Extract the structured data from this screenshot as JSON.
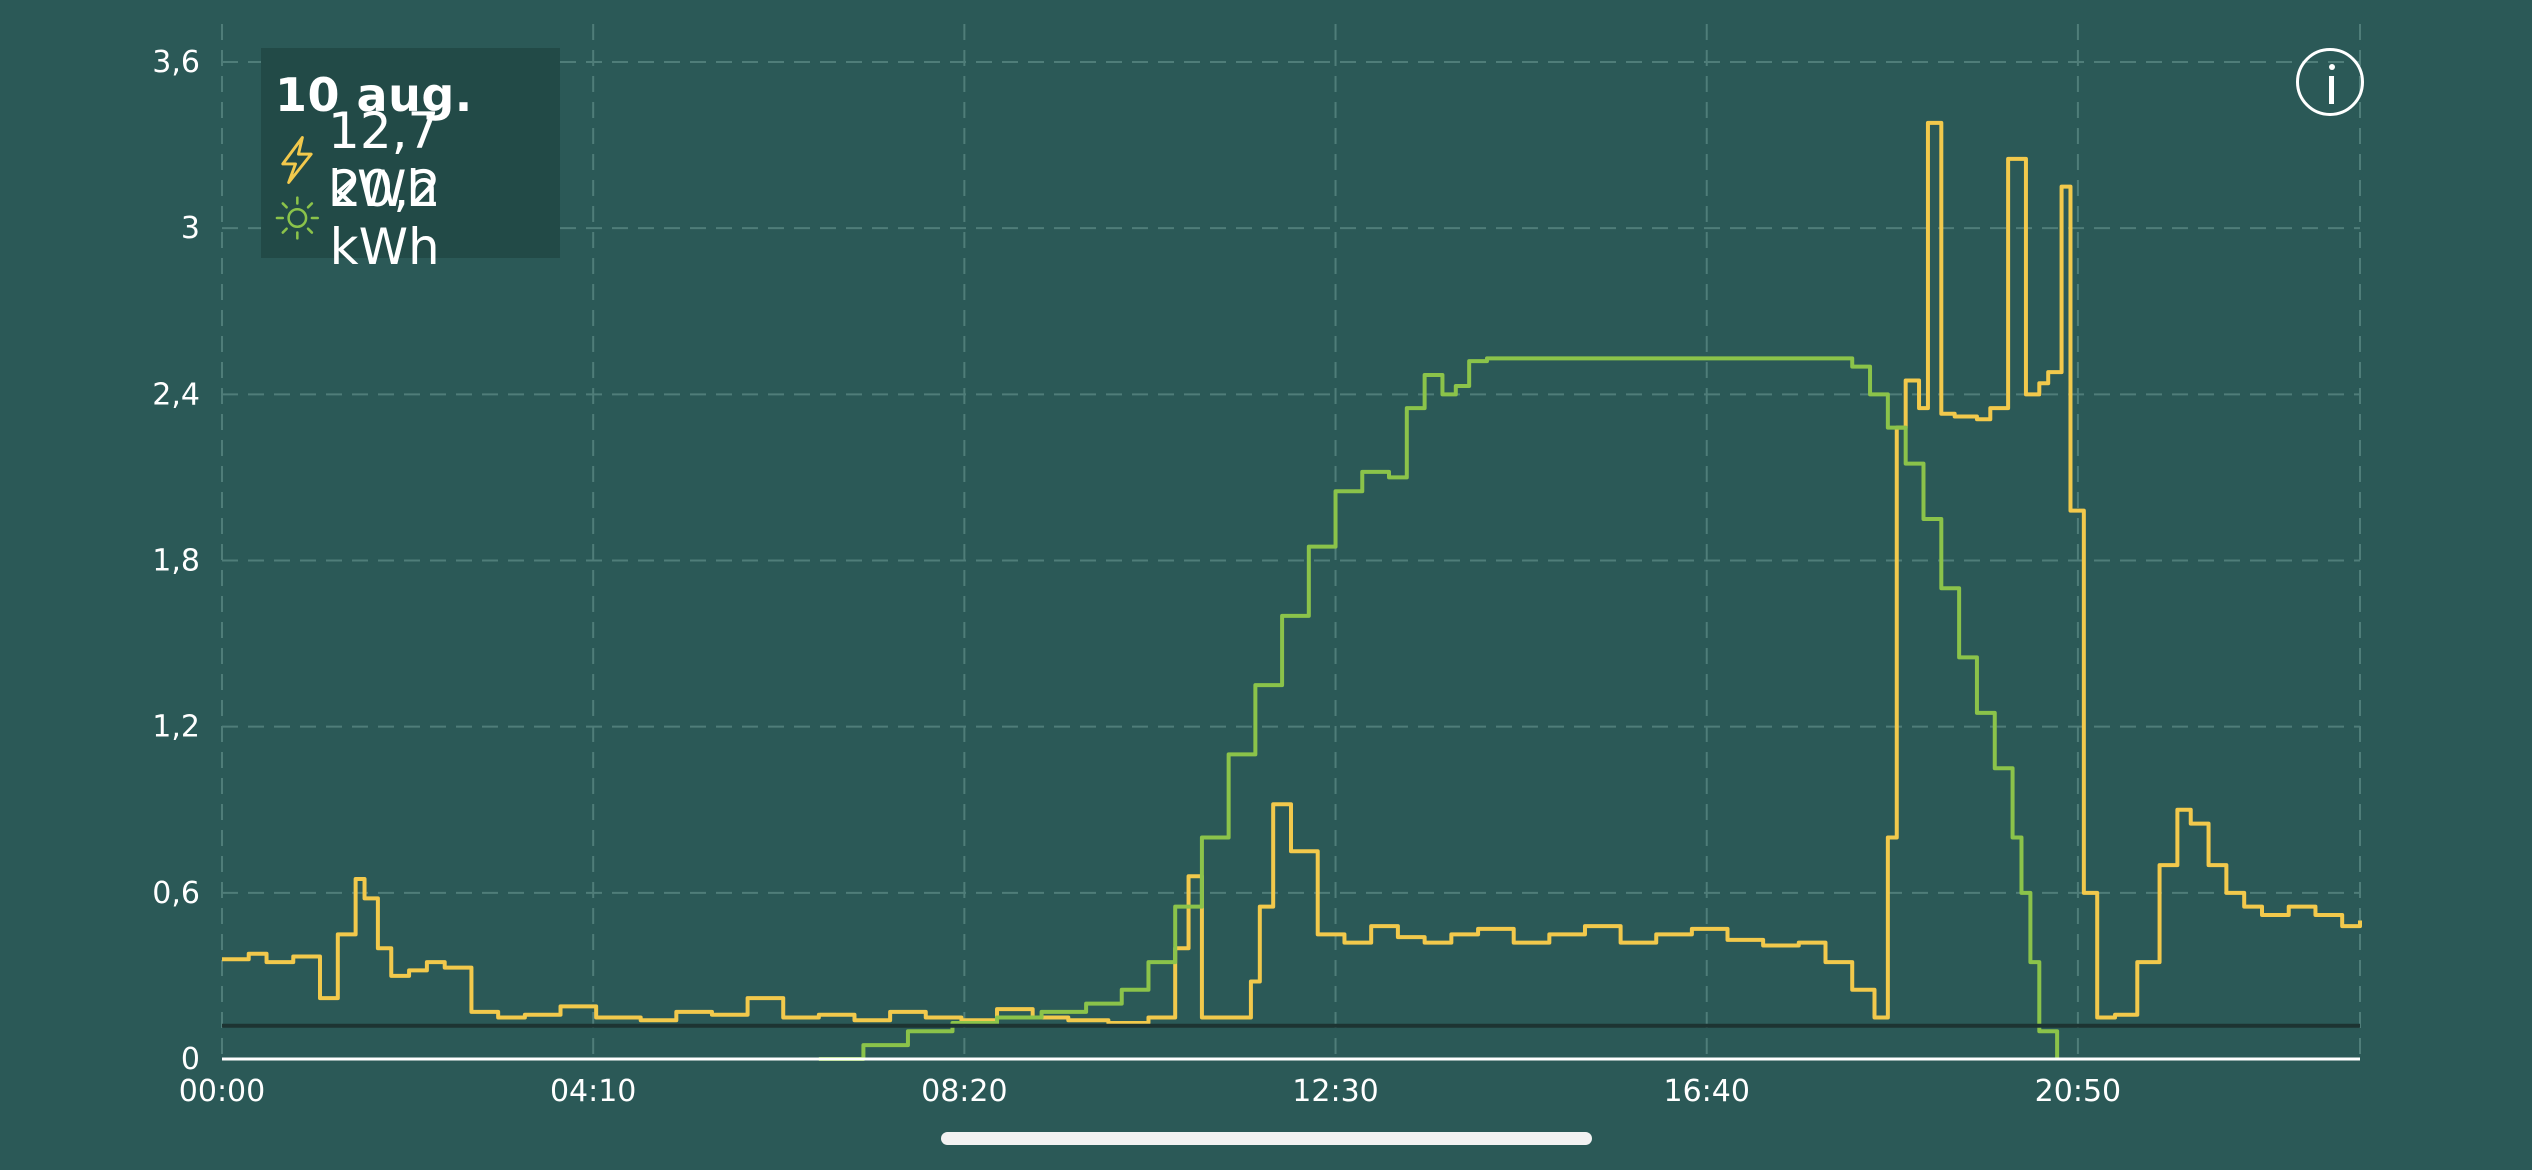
{
  "legend": {
    "date": "10 aug.",
    "consumption": {
      "icon": "lightning-icon",
      "value": "12,7 kWh",
      "color": "#f2c94c"
    },
    "production": {
      "icon": "sun-icon",
      "value": "20,2 kWh",
      "color": "#8bc34a"
    }
  },
  "info_button": {
    "icon": "info-icon"
  },
  "chart_data": {
    "type": "line",
    "x_unit": "hours",
    "xlim": [
      0,
      24
    ],
    "ylim": [
      0,
      3.6
    ],
    "x_ticks": [
      0,
      4.1667,
      8.3333,
      12.5,
      16.6667,
      20.8333
    ],
    "x_tick_labels": [
      "00:00",
      "04:10",
      "08:20",
      "12:30",
      "16:40",
      "20:50"
    ],
    "y_ticks": [
      0,
      0.6,
      1.2,
      1.8,
      2.4,
      3,
      3.6
    ],
    "y_tick_labels": [
      "0",
      "0,6",
      "1,2",
      "1,8",
      "2,4",
      "3",
      "3,6"
    ],
    "grid": true,
    "baseline_value": 0.12,
    "colors": {
      "background": "#2b5957",
      "grid": "#4f7d79",
      "consumption": "#f2c94c",
      "production": "#8bc34a",
      "baseline": "#1d3432"
    },
    "series": [
      {
        "id": "consumption",
        "x": [
          0,
          0.3,
          0.5,
          0.8,
          1.1,
          1.3,
          1.5,
          1.6,
          1.75,
          1.9,
          2.1,
          2.3,
          2.5,
          2.8,
          3.1,
          3.4,
          3.8,
          4.2,
          4.7,
          5.1,
          5.5,
          5.9,
          6.3,
          6.7,
          7.1,
          7.5,
          7.9,
          8.3,
          8.7,
          9.1,
          9.5,
          9.95,
          10.4,
          10.7,
          10.85,
          11,
          11.3,
          11.55,
          11.65,
          11.8,
          12,
          12.3,
          12.6,
          12.9,
          13.2,
          13.5,
          13.8,
          14.1,
          14.5,
          14.9,
          15.3,
          15.7,
          16.1,
          16.5,
          16.9,
          17.3,
          17.7,
          18,
          18.3,
          18.55,
          18.7,
          18.8,
          18.9,
          19.05,
          19.15,
          19.3,
          19.45,
          19.7,
          19.85,
          20.05,
          20.25,
          20.4,
          20.5,
          20.65,
          20.75,
          20.9,
          21.05,
          21.15,
          21.25,
          21.5,
          21.75,
          21.95,
          22.1,
          22.3,
          22.5,
          22.7,
          22.9,
          23.2,
          23.5,
          23.8,
          24
        ],
        "values": [
          0.36,
          0.38,
          0.35,
          0.37,
          0.22,
          0.45,
          0.65,
          0.58,
          0.4,
          0.3,
          0.32,
          0.35,
          0.33,
          0.17,
          0.15,
          0.16,
          0.19,
          0.15,
          0.14,
          0.17,
          0.16,
          0.22,
          0.15,
          0.16,
          0.14,
          0.17,
          0.15,
          0.14,
          0.18,
          0.15,
          0.14,
          0.13,
          0.15,
          0.4,
          0.66,
          0.15,
          0.15,
          0.28,
          0.55,
          0.92,
          0.75,
          0.45,
          0.42,
          0.48,
          0.44,
          0.42,
          0.45,
          0.47,
          0.42,
          0.45,
          0.48,
          0.42,
          0.45,
          0.47,
          0.43,
          0.41,
          0.42,
          0.35,
          0.25,
          0.15,
          0.8,
          2.28,
          2.45,
          2.35,
          3.38,
          2.33,
          2.32,
          2.31,
          2.35,
          3.25,
          2.4,
          2.44,
          2.48,
          3.15,
          1.98,
          0.6,
          0.15,
          0.15,
          0.16,
          0.35,
          0.7,
          0.9,
          0.85,
          0.7,
          0.6,
          0.55,
          0.52,
          0.55,
          0.52,
          0.48,
          0.5
        ]
      },
      {
        "id": "production",
        "x": [
          6.7,
          7.2,
          7.7,
          8.2,
          8.7,
          9.2,
          9.7,
          10.1,
          10.4,
          10.7,
          11,
          11.3,
          11.6,
          11.9,
          12.2,
          12.5,
          12.8,
          13.1,
          13.3,
          13.5,
          13.7,
          13.85,
          14,
          14.2,
          14.6,
          15,
          15.5,
          16,
          16.5,
          17,
          17.5,
          18.2,
          18.3,
          18.5,
          18.7,
          18.9,
          19.1,
          19.3,
          19.5,
          19.7,
          19.9,
          20.1,
          20.2,
          20.3,
          20.4,
          20.6
        ],
        "values": [
          0,
          0.05,
          0.1,
          0.13,
          0.15,
          0.17,
          0.2,
          0.25,
          0.35,
          0.55,
          0.8,
          1.1,
          1.35,
          1.6,
          1.85,
          2.05,
          2.12,
          2.1,
          2.35,
          2.47,
          2.4,
          2.43,
          2.52,
          2.53,
          2.53,
          2.53,
          2.53,
          2.53,
          2.53,
          2.53,
          2.53,
          2.53,
          2.5,
          2.4,
          2.28,
          2.15,
          1.95,
          1.7,
          1.45,
          1.25,
          1.05,
          0.8,
          0.6,
          0.35,
          0.1,
          0
        ]
      }
    ]
  }
}
